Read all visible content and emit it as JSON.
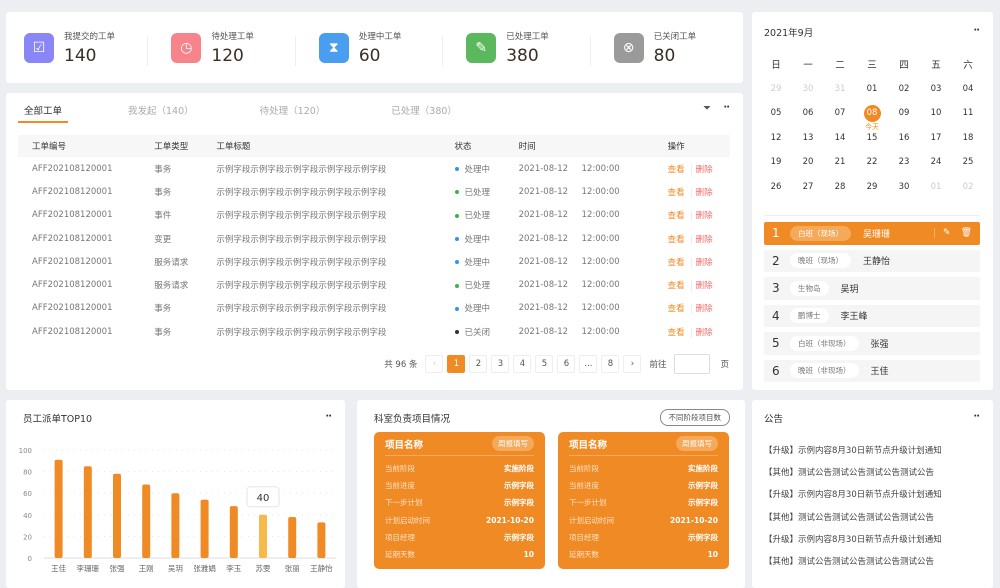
{
  "stats": [
    {
      "label": "我提交的工单",
      "value": "140",
      "color": "#8b86f6",
      "icon": "inbox-check-icon"
    },
    {
      "label": "待处理工单",
      "value": "120",
      "color": "#f7838b",
      "icon": "clock-icon"
    },
    {
      "label": "处理中工单",
      "value": "60",
      "color": "#4a9eef",
      "icon": "hourglass-icon"
    },
    {
      "label": "已处理工单",
      "value": "380",
      "color": "#5cb85c",
      "icon": "document-check-icon"
    },
    {
      "label": "已关闭工单",
      "value": "80",
      "color": "#9a9a9a",
      "icon": "close-circle-icon"
    }
  ],
  "orders": {
    "tabs": [
      "全部工单",
      "我发起（140）",
      "待处理（120）",
      "已处理（380）"
    ],
    "columns": [
      "工单编号",
      "工单类型",
      "工单标题",
      "状态",
      "时间",
      "操作"
    ],
    "rows": [
      [
        "AFF202108120001",
        "事务",
        "示例字段示例字段示例字段示例字段示例字段",
        "处理中",
        "2021-08-12",
        "12:00:00"
      ],
      [
        "AFF202108120001",
        "事务",
        "示例字段示例字段示例字段示例字段示例字段",
        "已处理",
        "2021-08-12",
        "12:00:00"
      ],
      [
        "AFF202108120001",
        "事件",
        "示例字段示例字段示例字段示例字段示例字段",
        "已处理",
        "2021-08-12",
        "12:00:00"
      ],
      [
        "AFF202108120001",
        "变更",
        "示例字段示例字段示例字段示例字段示例字段",
        "处理中",
        "2021-08-12",
        "12:00:00"
      ],
      [
        "AFF202108120001",
        "服务请求",
        "示例字段示例字段示例字段示例字段示例字段",
        "处理中",
        "2021-08-12",
        "12:00:00"
      ],
      [
        "AFF202108120001",
        "服务请求",
        "示例字段示例字段示例字段示例字段示例字段",
        "已处理",
        "2021-08-12",
        "12:00:00"
      ],
      [
        "AFF202108120001",
        "事务",
        "示例字段示例字段示例字段示例字段示例字段",
        "处理中",
        "2021-08-12",
        "12:00:00"
      ],
      [
        "AFF202108120001",
        "事务",
        "示例字段示例字段示例字段示例字段示例字段",
        "已关闭",
        "2021-08-12",
        "12:00:00"
      ]
    ],
    "status_colors": {
      "处理中": "#3d8ef0",
      "已处理": "#3bb54a",
      "已关闭": "#333333"
    },
    "view_label": "查看",
    "delete_label": "删除",
    "pager": {
      "total": "共 96 条",
      "pages": [
        "1",
        "2",
        "3",
        "4",
        "5",
        "6",
        "...",
        "8"
      ],
      "current": "1",
      "goto": "前往",
      "page_unit": "页"
    }
  },
  "calendar": {
    "title": "2021年9月",
    "weekdays": [
      "日",
      "一",
      "二",
      "三",
      "四",
      "五",
      "六"
    ],
    "days": [
      [
        "29",
        1
      ],
      [
        "30",
        1
      ],
      [
        "31",
        1
      ],
      [
        "01",
        0
      ],
      [
        "02",
        0
      ],
      [
        "03",
        0
      ],
      [
        "04",
        0
      ],
      [
        "05",
        0
      ],
      [
        "06",
        0
      ],
      [
        "07",
        0
      ],
      [
        "08",
        2
      ],
      [
        "09",
        0
      ],
      [
        "10",
        0
      ],
      [
        "11",
        0
      ],
      [
        "12",
        0
      ],
      [
        "13",
        0
      ],
      [
        "14",
        0
      ],
      [
        "15",
        0
      ],
      [
        "16",
        0
      ],
      [
        "17",
        0
      ],
      [
        "18",
        0
      ],
      [
        "19",
        0
      ],
      [
        "20",
        0
      ],
      [
        "21",
        0
      ],
      [
        "22",
        0
      ],
      [
        "23",
        0
      ],
      [
        "24",
        0
      ],
      [
        "25",
        0
      ],
      [
        "26",
        0
      ],
      [
        "27",
        0
      ],
      [
        "28",
        0
      ],
      [
        "29",
        0
      ],
      [
        "30",
        0
      ],
      [
        "01",
        1
      ],
      [
        "02",
        1
      ]
    ],
    "today_label": "今天",
    "shifts": [
      {
        "n": "1",
        "tag": "白班（现场）",
        "name": "吴珊珊"
      },
      {
        "n": "2",
        "tag": "晚班（现场）",
        "name": "王静怡"
      },
      {
        "n": "3",
        "tag": "生物岛",
        "name": "吴玥"
      },
      {
        "n": "4",
        "tag": "鹏博士",
        "name": "李王峰"
      },
      {
        "n": "5",
        "tag": "白班（非现场）",
        "name": "张强"
      },
      {
        "n": "6",
        "tag": "晚班（非现场）",
        "name": "王佳"
      }
    ]
  },
  "chart_data": {
    "type": "bar",
    "title": "员工派单TOP10",
    "categories": [
      "王佳",
      "李珊珊",
      "张强",
      "王刚",
      "吴玥",
      "张雅娟",
      "李玉",
      "苏雯",
      "张丽",
      "王静怡"
    ],
    "values": [
      91,
      85,
      78,
      68,
      60,
      54,
      48,
      40,
      38,
      33
    ],
    "ylim": [
      0,
      100
    ],
    "yticks": [
      0,
      20,
      40,
      60,
      80,
      100
    ],
    "highlight": {
      "category": "苏雯",
      "tooltip": "40"
    },
    "bar_color": "#f08a24",
    "highlight_color": "#f7b94a",
    "grid": true
  },
  "projects": {
    "title": "科室负责项目情况",
    "button": "不同阶段项目数",
    "cards": [
      {
        "name": "项目名称",
        "action": "周报填写",
        "rows": [
          [
            "当前阶段",
            "实施阶段"
          ],
          [
            "当前进度",
            "示例字段"
          ],
          [
            "下一步计划",
            "示例字段"
          ],
          [
            "计划启动时间",
            "2021-10-20"
          ],
          [
            "项目经理",
            "示例字段"
          ],
          [
            "延期天数",
            "10"
          ]
        ]
      },
      {
        "name": "项目名称",
        "action": "周报填写",
        "rows": [
          [
            "当前阶段",
            "实施阶段"
          ],
          [
            "当前进度",
            "示例字段"
          ],
          [
            "下一步计划",
            "示例字段"
          ],
          [
            "计划启动时间",
            "2021-10-20"
          ],
          [
            "项目经理",
            "示例字段"
          ],
          [
            "延期天数",
            "10"
          ]
        ]
      }
    ]
  },
  "notice": {
    "title": "公告",
    "items": [
      "【升级】示例内容8月30日新节点升级计划通知",
      "【其他】测试公告测试公告测试公告测试公告",
      "【升级】示例内容8月30日新节点升级计划通知",
      "【其他】测试公告测试公告测试公告测试公告",
      "【升级】示例内容8月30日新节点升级计划通知",
      "【其他】测试公告测试公告测试公告测试公告"
    ]
  },
  "accent": "#f08a24"
}
